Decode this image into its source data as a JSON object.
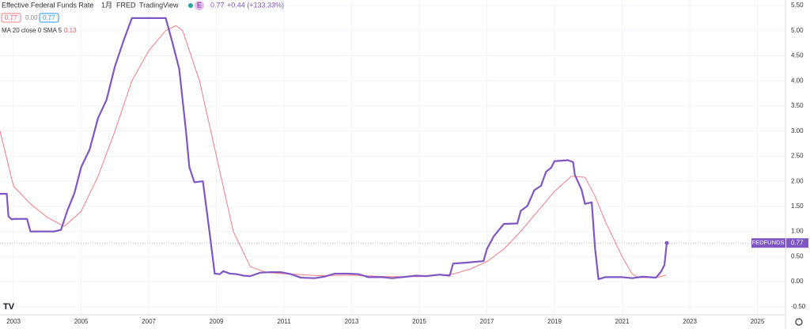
{
  "header": {
    "title": "Effective Federal Funds Rate",
    "interval": "1月",
    "source": "FRED",
    "platform": "TradingView",
    "badge": "E",
    "price": "0.77",
    "change": "+0.44 (+133.33%)",
    "boxes": [
      "0.77",
      "0.00",
      "0.77"
    ],
    "indicator": "MA 20 close 0 SMA 5",
    "indicator_value": "0.13"
  },
  "chart_data": {
    "type": "line",
    "grid": true,
    "xlim": [
      2002.6,
      2025.83
    ],
    "ylim": [
      -0.66,
      5.61
    ],
    "xticks": [
      2003,
      2005,
      2007,
      2009,
      2011,
      2013,
      2015,
      2017,
      2019,
      2021,
      2023,
      2025
    ],
    "yticks": [
      {
        "value": -0.5,
        "label": "-0.50"
      },
      {
        "value": 0,
        "label": "0.00"
      },
      {
        "value": 0.5,
        "label": "0.50"
      },
      {
        "value": 1,
        "label": "1.00"
      },
      {
        "value": 1.5,
        "label": "1.50"
      },
      {
        "value": 2,
        "label": "2.00"
      },
      {
        "value": 2.5,
        "label": "2.50"
      },
      {
        "value": 3,
        "label": "3.00"
      },
      {
        "value": 3.5,
        "label": "3.50"
      },
      {
        "value": 4,
        "label": "4.00"
      },
      {
        "value": 4.5,
        "label": "4.50"
      },
      {
        "value": 5,
        "label": "5.00"
      },
      {
        "value": 5.5,
        "label": "5.50"
      }
    ],
    "series": [
      {
        "name": "FEDFUNDS",
        "color": "#7e57c2",
        "x": [
          2002.6,
          2002.8,
          2002.85,
          2002.95,
          2003.0,
          2003.4,
          2003.5,
          2003.9,
          2004.2,
          2004.4,
          2004.6,
          2004.8,
          2005.0,
          2005.25,
          2005.5,
          2005.75,
          2006.0,
          2006.25,
          2006.5,
          2007.5,
          2007.7,
          2007.9,
          2008.1,
          2008.2,
          2008.35,
          2008.6,
          2008.8,
          2008.95,
          2009.1,
          2009.2,
          2009.4,
          2009.6,
          2009.8,
          2010.0,
          2010.3,
          2010.6,
          2010.9,
          2011.2,
          2011.5,
          2011.9,
          2012.2,
          2012.5,
          2012.9,
          2013.2,
          2013.5,
          2013.9,
          2014.2,
          2014.5,
          2014.9,
          2015.2,
          2015.6,
          2015.9,
          2016.0,
          2016.4,
          2016.9,
          2017.0,
          2017.2,
          2017.5,
          2017.9,
          2018.0,
          2018.2,
          2018.4,
          2018.6,
          2018.75,
          2018.9,
          2019.0,
          2019.4,
          2019.55,
          2019.6,
          2019.8,
          2019.9,
          2020.1,
          2020.2,
          2020.3,
          2020.5,
          2021.0,
          2021.3,
          2021.6,
          2022.0,
          2022.15,
          2022.25,
          2022.32
        ],
        "values": [
          1.75,
          1.75,
          1.3,
          1.24,
          1.25,
          1.25,
          1.0,
          1.0,
          1.0,
          1.03,
          1.43,
          1.76,
          2.28,
          2.63,
          3.26,
          3.62,
          4.29,
          4.79,
          5.25,
          5.25,
          4.76,
          4.24,
          3.0,
          2.28,
          1.98,
          2.0,
          0.97,
          0.16,
          0.15,
          0.21,
          0.16,
          0.15,
          0.12,
          0.11,
          0.18,
          0.19,
          0.19,
          0.15,
          0.08,
          0.07,
          0.1,
          0.16,
          0.16,
          0.15,
          0.09,
          0.09,
          0.07,
          0.09,
          0.12,
          0.11,
          0.14,
          0.12,
          0.36,
          0.38,
          0.41,
          0.65,
          0.9,
          1.15,
          1.16,
          1.41,
          1.51,
          1.82,
          1.91,
          2.19,
          2.27,
          2.4,
          2.42,
          2.38,
          2.13,
          1.83,
          1.55,
          1.58,
          0.65,
          0.05,
          0.09,
          0.09,
          0.07,
          0.1,
          0.08,
          0.2,
          0.33,
          0.77
        ]
      },
      {
        "name": "MA 20 close 0 SMA 5",
        "color": "#f77c80",
        "x": [
          2002.6,
          2003.0,
          2003.5,
          2004.0,
          2004.5,
          2005.0,
          2005.5,
          2006.0,
          2006.5,
          2007.0,
          2007.5,
          2007.8,
          2008.0,
          2008.5,
          2009.0,
          2009.5,
          2010.0,
          2010.5,
          2011.0,
          2012.0,
          2013.0,
          2014.0,
          2015.0,
          2016.0,
          2016.5,
          2017.0,
          2017.5,
          2018.0,
          2018.5,
          2019.0,
          2019.5,
          2019.9,
          2020.2,
          2020.5,
          2021.0,
          2021.3,
          2021.5,
          2022.0,
          2022.3
        ],
        "values": [
          3.0,
          1.9,
          1.55,
          1.28,
          1.1,
          1.4,
          2.1,
          3.0,
          4.0,
          4.6,
          5.0,
          5.1,
          5.0,
          4.0,
          2.5,
          1.0,
          0.3,
          0.18,
          0.16,
          0.12,
          0.13,
          0.1,
          0.1,
          0.15,
          0.25,
          0.4,
          0.65,
          1.0,
          1.4,
          1.8,
          2.1,
          2.08,
          1.7,
          1.2,
          0.5,
          0.15,
          0.08,
          0.08,
          0.13
        ]
      }
    ]
  }
}
